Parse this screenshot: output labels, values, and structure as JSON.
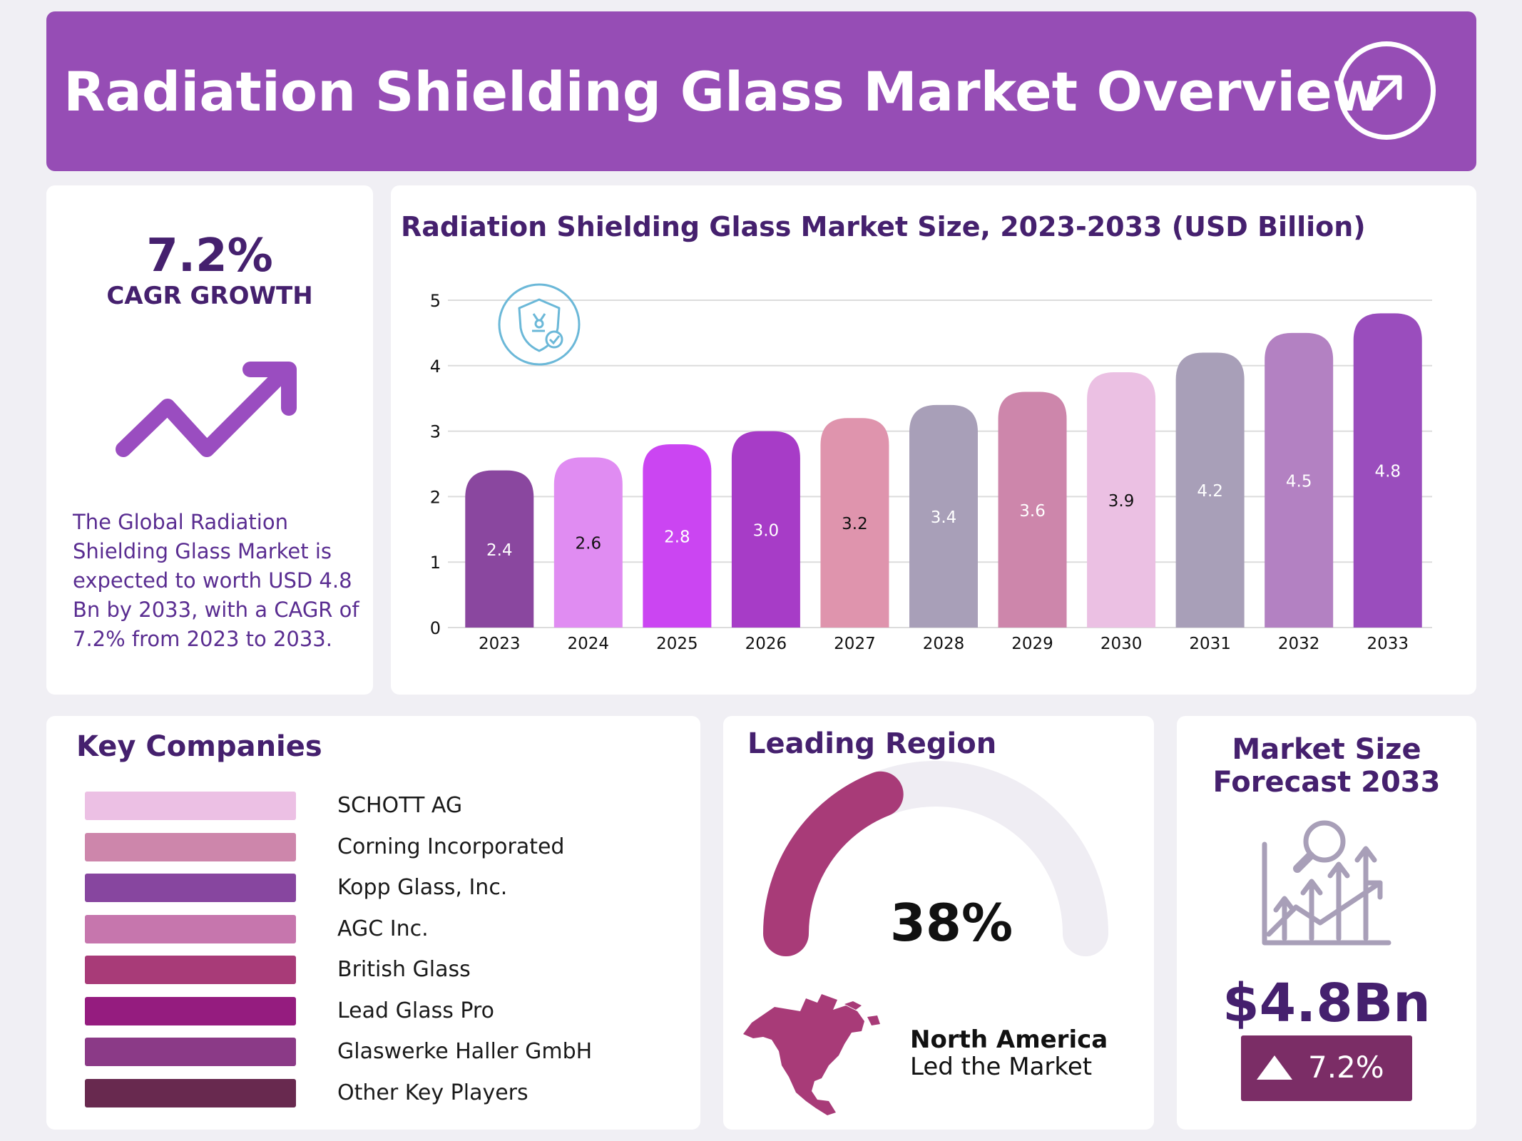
{
  "header": {
    "title": "Radiation Shielding Glass Market Overview",
    "icon": "arrow-up-right-circle-icon"
  },
  "cagr": {
    "value": "7.2%",
    "label": "CAGR GROWTH",
    "description": "The Global Radiation Shielding Glass Market is expected to worth USD 4.8 Bn by 2033, with a CAGR of 7.2% from 2023 to 2033.",
    "icon": "trend-up-arrow-icon",
    "accent": "#9a4dc0"
  },
  "chart_data": {
    "type": "bar",
    "title": "Radiation Shielding Glass Market Size, 2023-2033 (USD Billion)",
    "xlabel": "",
    "ylabel": "",
    "ylim": [
      0,
      5
    ],
    "yticks": [
      "0",
      "1",
      "2",
      "3",
      "4",
      "5"
    ],
    "grid": true,
    "categories": [
      "2023",
      "2024",
      "2025",
      "2026",
      "2027",
      "2028",
      "2029",
      "2030",
      "2031",
      "2032",
      "2033"
    ],
    "values": [
      2.4,
      2.6,
      2.8,
      3.0,
      3.2,
      3.4,
      3.6,
      3.9,
      4.2,
      4.5,
      4.8
    ],
    "value_labels": [
      "2.4",
      "2.6",
      "2.8",
      "3.0",
      "3.2",
      "3.4",
      "3.6",
      "3.9",
      "4.2",
      "4.5",
      "4.8"
    ],
    "colors": [
      "#8a479f",
      "#e08cf2",
      "#cb45f2",
      "#a73cc7",
      "#df94ad",
      "#a89fb8",
      "#cd86ab",
      "#ebc0e3",
      "#a89fb8",
      "#b381c2",
      "#9a4dbd"
    ],
    "label_colors": [
      "#ffffff",
      "#111111",
      "#ffffff",
      "#ffffff",
      "#111111",
      "#ffffff",
      "#ffffff",
      "#111111",
      "#ffffff",
      "#ffffff",
      "#ffffff"
    ],
    "icon": "radiation-shield-icon"
  },
  "companies": {
    "title": "Key Companies",
    "items": [
      {
        "name": "SCHOTT AG",
        "color": "#ecc0e4"
      },
      {
        "name": "Corning Incorporated",
        "color": "#cd86ab"
      },
      {
        "name": "Kopp Glass, Inc.",
        "color": "#87469f"
      },
      {
        "name": "AGC Inc.",
        "color": "#c676ad"
      },
      {
        "name": "British Glass",
        "color": "#a83b78"
      },
      {
        "name": "Lead Glass Pro",
        "color": "#951c7f"
      },
      {
        "name": "Glaswerke Haller GmbH",
        "color": "#8b3a87"
      },
      {
        "name": "Other Key Players",
        "color": "#68294f"
      }
    ]
  },
  "region": {
    "title": "Leading Region",
    "share": "38%",
    "share_fraction": 0.38,
    "name": "North America",
    "subtitle": "Led the Market",
    "color": "#a83b78",
    "track_color": "#efedf3",
    "icon": "north-america-map-icon"
  },
  "forecast": {
    "title_line1": "Market Size",
    "title_line2": "Forecast 2033",
    "value": "$4.8Bn",
    "growth": "7.2%",
    "icon": "growth-chart-magnifier-icon",
    "badge_color": "#7b2d66"
  }
}
